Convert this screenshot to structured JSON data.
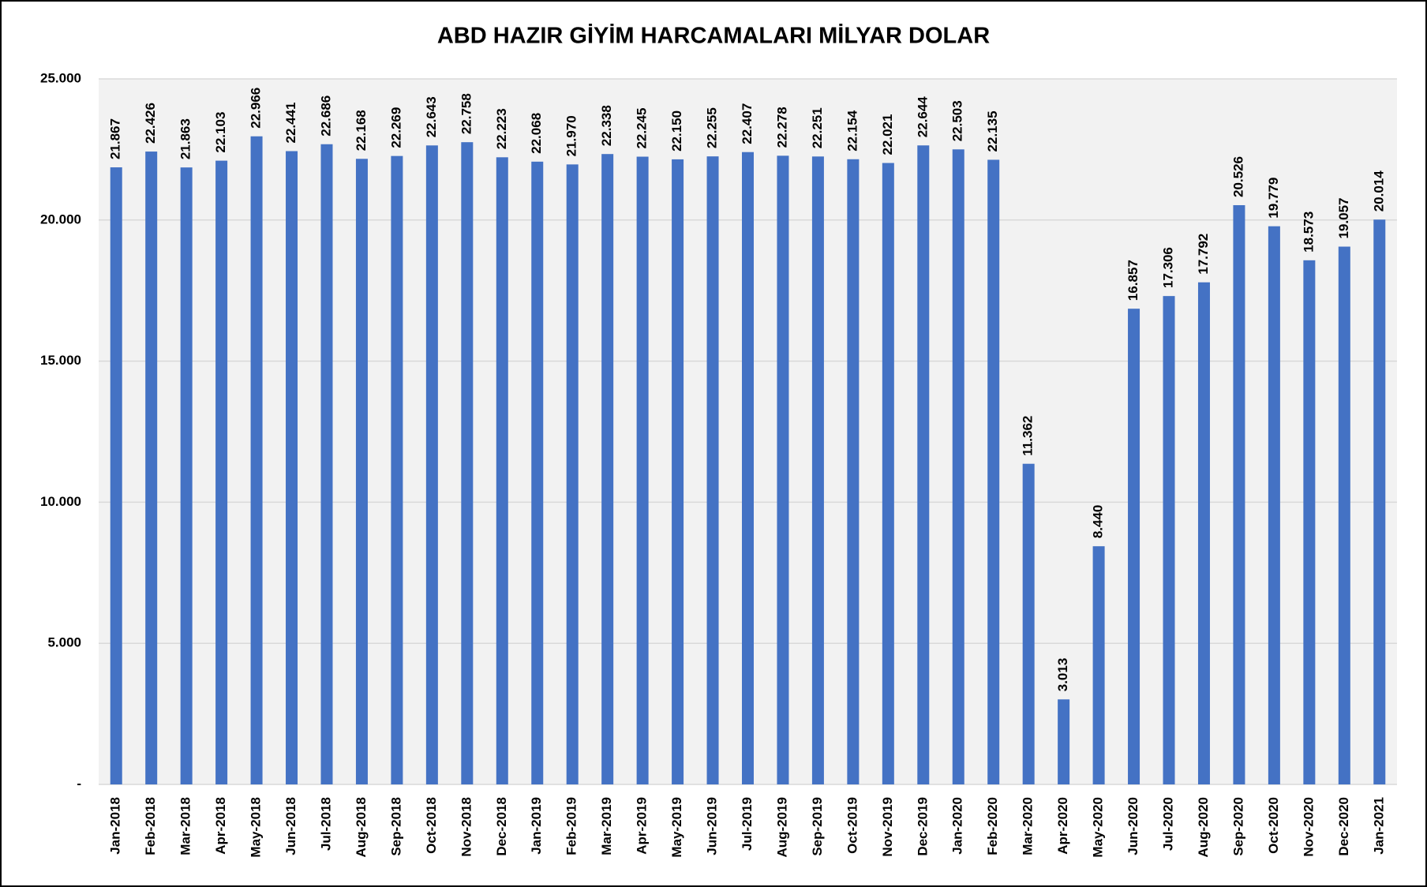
{
  "chart_data": {
    "type": "bar",
    "title": "ABD HAZIR GİYİM HARCAMALARI MİLYAR DOLAR",
    "categories": [
      "Jan-2018",
      "Feb-2018",
      "Mar-2018",
      "Apr-2018",
      "May-2018",
      "Jun-2018",
      "Jul-2018",
      "Aug-2018",
      "Sep-2018",
      "Oct-2018",
      "Nov-2018",
      "Dec-2018",
      "Jan-2019",
      "Feb-2019",
      "Mar-2019",
      "Apr-2019",
      "May-2019",
      "Jun-2019",
      "Jul-2019",
      "Aug-2019",
      "Sep-2019",
      "Oct-2019",
      "Nov-2019",
      "Dec-2019",
      "Jan-2020",
      "Feb-2020",
      "Mar-2020",
      "Apr-2020",
      "May-2020",
      "Jun-2020",
      "Jul-2020",
      "Aug-2020",
      "Sep-2020",
      "Oct-2020",
      "Nov-2020",
      "Dec-2020",
      "Jan-2021"
    ],
    "values": [
      21.867,
      22.426,
      21.863,
      22.103,
      22.966,
      22.441,
      22.686,
      22.168,
      22.269,
      22.643,
      22.758,
      22.223,
      22.068,
      21.97,
      22.338,
      22.245,
      22.15,
      22.255,
      22.407,
      22.278,
      22.251,
      22.154,
      22.021,
      22.644,
      22.503,
      22.135,
      11.362,
      3.013,
      8.44,
      16.857,
      17.306,
      17.792,
      20.526,
      19.779,
      18.573,
      19.057,
      20.014
    ],
    "value_labels": [
      "21.867",
      "22.426",
      "21.863",
      "22.103",
      "22.966",
      "22.441",
      "22.686",
      "22.168",
      "22.269",
      "22.643",
      "22.758",
      "22.223",
      "22.068",
      "21.970",
      "22.338",
      "22.245",
      "22.150",
      "22.255",
      "22.407",
      "22.278",
      "22.251",
      "22.154",
      "22.021",
      "22.644",
      "22.503",
      "22.135",
      "11.362",
      "3.013",
      "8.440",
      "16.857",
      "17.306",
      "17.792",
      "20.526",
      "19.779",
      "18.573",
      "19.057",
      "20.014"
    ],
    "color": "#4472c4",
    "ylim": [
      0,
      25
    ],
    "yticks": [
      {
        "value": 0,
        "label": "-"
      },
      {
        "value": 5,
        "label": "5.000"
      },
      {
        "value": 10,
        "label": "10.000"
      },
      {
        "value": 15,
        "label": "15.000"
      },
      {
        "value": 20,
        "label": "20.000"
      },
      {
        "value": 25,
        "label": "25.000"
      }
    ],
    "grid": true
  }
}
